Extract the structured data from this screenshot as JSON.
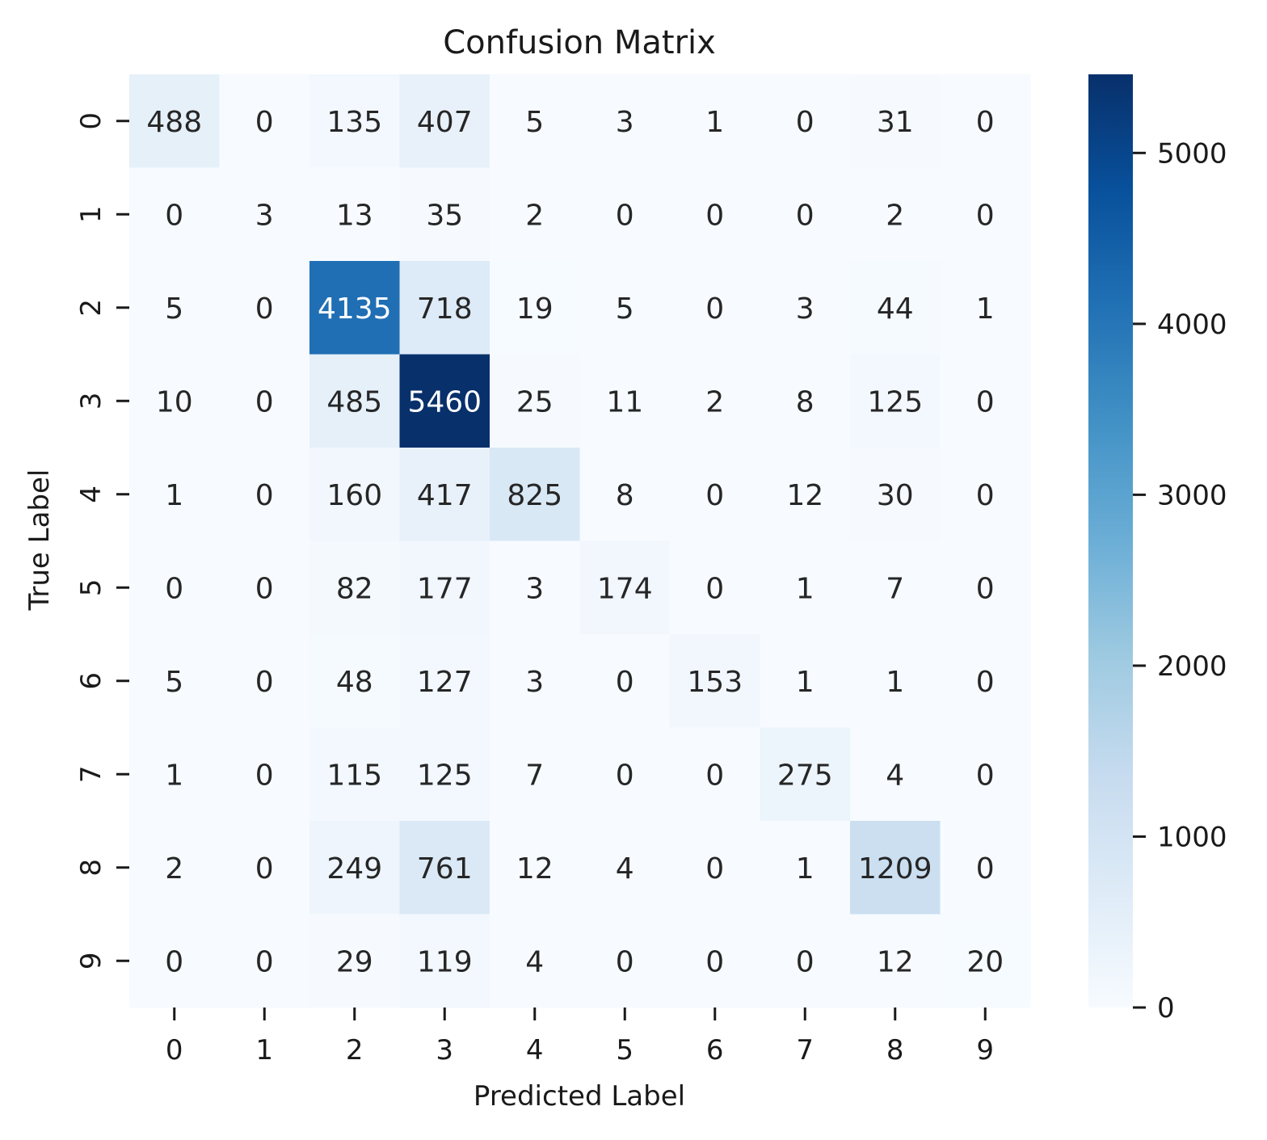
{
  "chart_data": {
    "type": "heatmap",
    "title": "Confusion Matrix",
    "xlabel": "Predicted Label",
    "ylabel": "True Label",
    "x_categories": [
      "0",
      "1",
      "2",
      "3",
      "4",
      "5",
      "6",
      "7",
      "8",
      "9"
    ],
    "y_categories": [
      "0",
      "1",
      "2",
      "3",
      "4",
      "5",
      "6",
      "7",
      "8",
      "9"
    ],
    "values": [
      [
        488,
        0,
        135,
        407,
        5,
        3,
        1,
        0,
        31,
        0
      ],
      [
        0,
        3,
        13,
        35,
        2,
        0,
        0,
        0,
        2,
        0
      ],
      [
        5,
        0,
        4135,
        718,
        19,
        5,
        0,
        3,
        44,
        1
      ],
      [
        10,
        0,
        485,
        5460,
        25,
        11,
        2,
        8,
        125,
        0
      ],
      [
        1,
        0,
        160,
        417,
        825,
        8,
        0,
        12,
        30,
        0
      ],
      [
        0,
        0,
        82,
        177,
        3,
        174,
        0,
        1,
        7,
        0
      ],
      [
        5,
        0,
        48,
        127,
        3,
        0,
        153,
        1,
        1,
        0
      ],
      [
        1,
        0,
        115,
        125,
        7,
        0,
        0,
        275,
        4,
        0
      ],
      [
        2,
        0,
        249,
        761,
        12,
        4,
        0,
        1,
        1209,
        0
      ],
      [
        0,
        0,
        29,
        119,
        4,
        0,
        0,
        0,
        12,
        20
      ]
    ],
    "colormap": "Blues",
    "color_range": [
      0,
      5460
    ],
    "colorbar_ticks": [
      "0",
      "1000",
      "2000",
      "3000",
      "4000",
      "5000"
    ],
    "colorbar_tick_values": [
      0,
      1000,
      2000,
      3000,
      4000,
      5000
    ],
    "colormap_stops": [
      "#f7fbff",
      "#deebf7",
      "#c6dbef",
      "#9ecae1",
      "#6baed6",
      "#4292c6",
      "#2171b5",
      "#08519c",
      "#08306b"
    ],
    "annotation_dark_color": "#262626",
    "annotation_light_color": "#ffffff",
    "grid": false,
    "legend": "colorbar-right"
  }
}
